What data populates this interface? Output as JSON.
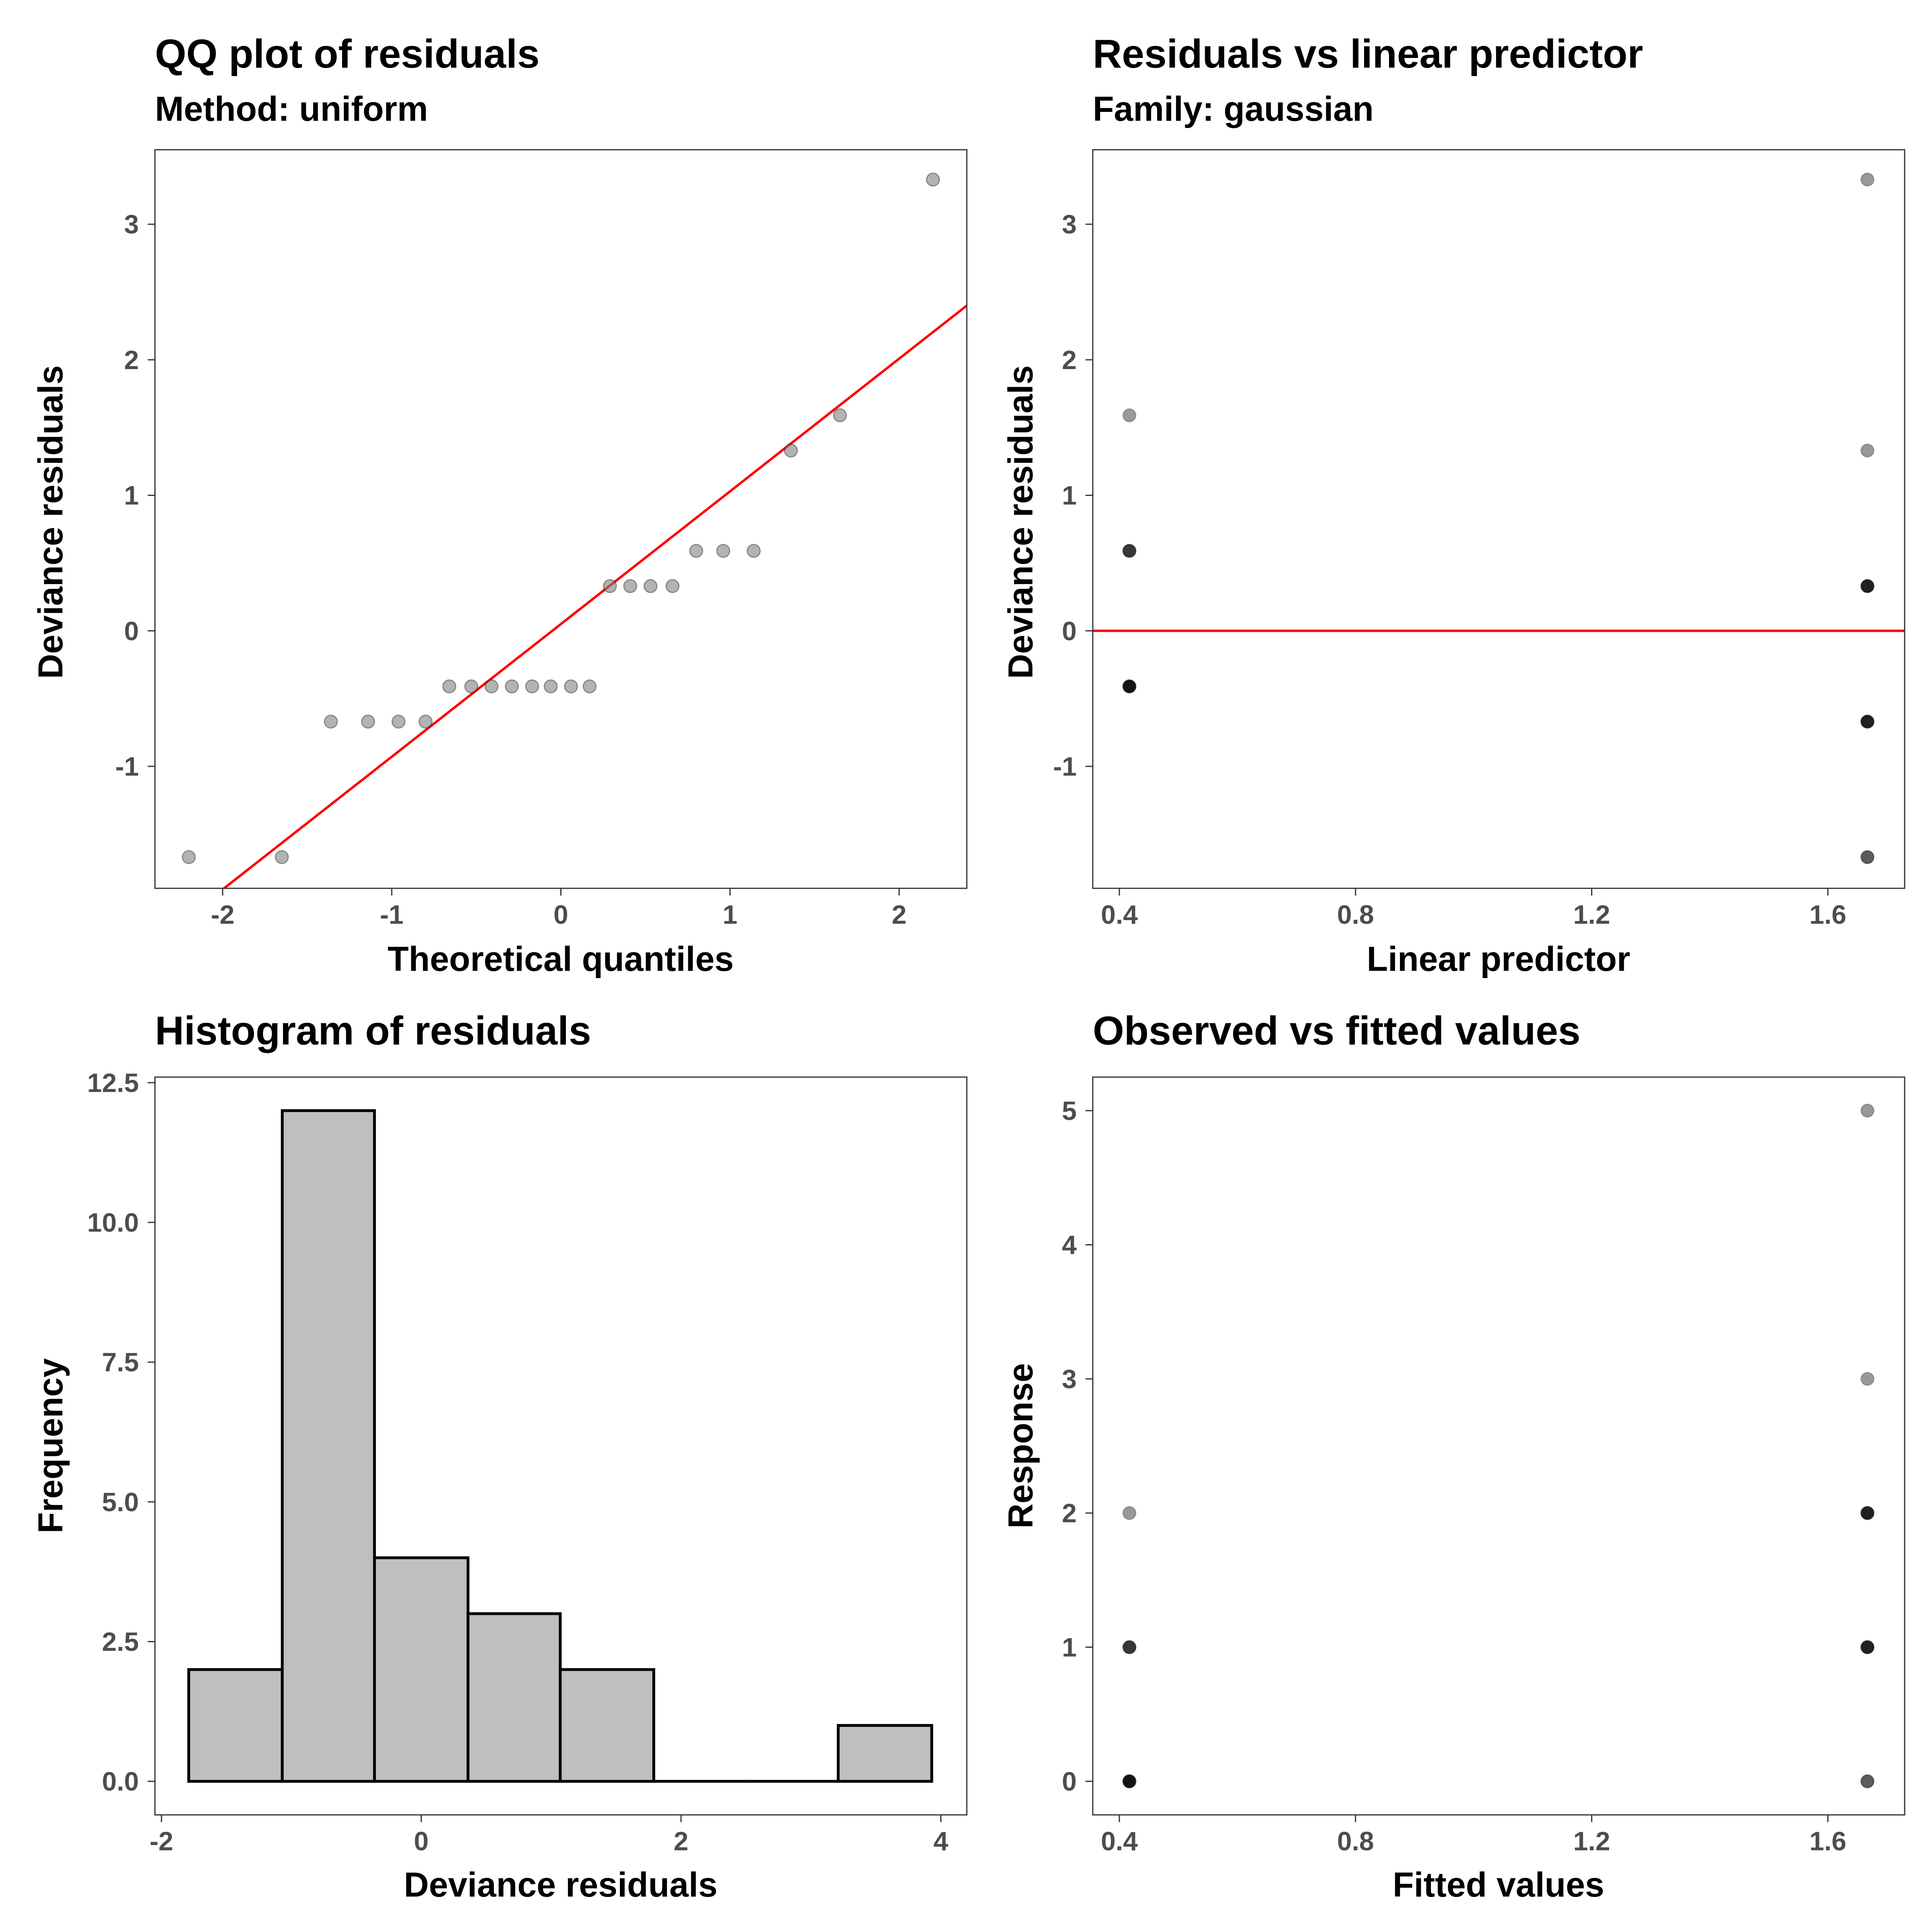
{
  "chart_data": [
    {
      "type": "scatter",
      "title": "QQ plot of residuals",
      "subtitle": "Method: uniform",
      "xlabel": "Theoretical quantiles",
      "ylabel": "Deviance residuals",
      "xlim": [
        -2.4,
        2.4
      ],
      "ylim": [
        -1.9,
        3.55
      ],
      "xticks": [
        -2,
        -1,
        0,
        1,
        2
      ],
      "yticks": [
        -1,
        0,
        1,
        2,
        3
      ],
      "xtick_labels": [
        "-2",
        "-1",
        "0",
        "1",
        "2"
      ],
      "ytick_labels": [
        "-1",
        "0",
        "1",
        "2",
        "3"
      ],
      "point_color": "#808080",
      "line_color": "#ff0000",
      "reference_line": {
        "x": [
          -2.4,
          2.4
        ],
        "y": [
          -2.3,
          2.4
        ]
      },
      "points": [
        {
          "x": -2.2,
          "y": -1.67
        },
        {
          "x": -1.65,
          "y": -1.67
        },
        {
          "x": -1.36,
          "y": -0.67
        },
        {
          "x": -1.14,
          "y": -0.67
        },
        {
          "x": -0.96,
          "y": -0.67
        },
        {
          "x": -0.8,
          "y": -0.67
        },
        {
          "x": -0.66,
          "y": -0.41
        },
        {
          "x": -0.53,
          "y": -0.41
        },
        {
          "x": -0.41,
          "y": -0.41
        },
        {
          "x": -0.29,
          "y": -0.41
        },
        {
          "x": -0.17,
          "y": -0.41
        },
        {
          "x": -0.06,
          "y": -0.41
        },
        {
          "x": 0.06,
          "y": -0.41
        },
        {
          "x": 0.17,
          "y": -0.41
        },
        {
          "x": 0.29,
          "y": 0.33
        },
        {
          "x": 0.41,
          "y": 0.33
        },
        {
          "x": 0.53,
          "y": 0.33
        },
        {
          "x": 0.66,
          "y": 0.33
        },
        {
          "x": 0.8,
          "y": 0.59
        },
        {
          "x": 0.96,
          "y": 0.59
        },
        {
          "x": 1.14,
          "y": 0.59
        },
        {
          "x": 1.36,
          "y": 1.33
        },
        {
          "x": 1.65,
          "y": 1.59
        },
        {
          "x": 2.2,
          "y": 3.33
        }
      ]
    },
    {
      "type": "scatter",
      "title": "Residuals vs linear predictor",
      "subtitle": "Family: gaussian",
      "xlabel": "Linear predictor",
      "ylabel": "Deviance residuals",
      "xlim": [
        0.355,
        1.73
      ],
      "ylim": [
        -1.9,
        3.55
      ],
      "xticks": [
        0.4,
        0.8,
        1.2,
        1.6
      ],
      "yticks": [
        -1,
        0,
        1,
        2,
        3
      ],
      "xtick_labels": [
        "0.4",
        "0.8",
        "1.2",
        "1.6"
      ],
      "ytick_labels": [
        "-1",
        "0",
        "1",
        "2",
        "3"
      ],
      "point_color": "#000000",
      "line_color": "#ff0000",
      "hline": 0,
      "points": [
        {
          "x": 0.417,
          "y": 1.59,
          "count": 1
        },
        {
          "x": 0.417,
          "y": 0.59,
          "count": 3
        },
        {
          "x": 0.417,
          "y": -0.41,
          "count": 8
        },
        {
          "x": 1.667,
          "y": 3.33,
          "count": 1
        },
        {
          "x": 1.667,
          "y": 1.33,
          "count": 1
        },
        {
          "x": 1.667,
          "y": 0.33,
          "count": 4
        },
        {
          "x": 1.667,
          "y": -0.67,
          "count": 4
        },
        {
          "x": 1.667,
          "y": -1.67,
          "count": 2
        }
      ]
    },
    {
      "type": "bar",
      "title": "Histogram of residuals",
      "xlabel": "Deviance residuals",
      "ylabel": "Frequency",
      "xlim": [
        -2.05,
        4.2
      ],
      "ylim": [
        -0.6,
        12.6
      ],
      "xticks": [
        -2,
        0,
        2,
        4
      ],
      "yticks": [
        0,
        2.5,
        5,
        7.5,
        10,
        12.5
      ],
      "xtick_labels": [
        "-2",
        "0",
        "2",
        "4"
      ],
      "ytick_labels": [
        "0.0",
        "2.5",
        "5.0",
        "7.5",
        "10.0",
        "12.5"
      ],
      "bar_fill": "#bfbfbf",
      "bar_stroke": "#000000",
      "bins": [
        {
          "x0": -1.79,
          "x1": -1.07,
          "count": 2
        },
        {
          "x0": -1.07,
          "x1": -0.36,
          "count": 12
        },
        {
          "x0": -0.36,
          "x1": 0.36,
          "count": 4
        },
        {
          "x0": 0.36,
          "x1": 1.07,
          "count": 3
        },
        {
          "x0": 1.07,
          "x1": 1.79,
          "count": 2
        },
        {
          "x0": 1.79,
          "x1": 2.5,
          "count": 0
        },
        {
          "x0": 2.5,
          "x1": 3.21,
          "count": 0
        },
        {
          "x0": 3.21,
          "x1": 3.93,
          "count": 1
        }
      ]
    },
    {
      "type": "scatter",
      "title": "Observed vs fitted values",
      "xlabel": "Fitted values",
      "ylabel": "Response",
      "xlim": [
        0.355,
        1.73
      ],
      "ylim": [
        -0.25,
        5.25
      ],
      "xticks": [
        0.4,
        0.8,
        1.2,
        1.6
      ],
      "yticks": [
        0,
        1,
        2,
        3,
        4,
        5
      ],
      "xtick_labels": [
        "0.4",
        "0.8",
        "1.2",
        "1.6"
      ],
      "ytick_labels": [
        "0",
        "1",
        "2",
        "3",
        "4",
        "5"
      ],
      "point_color": "#000000",
      "points": [
        {
          "x": 0.417,
          "y": 2,
          "count": 1
        },
        {
          "x": 0.417,
          "y": 1,
          "count": 3
        },
        {
          "x": 0.417,
          "y": 0,
          "count": 8
        },
        {
          "x": 1.667,
          "y": 5,
          "count": 1
        },
        {
          "x": 1.667,
          "y": 3,
          "count": 1
        },
        {
          "x": 1.667,
          "y": 2,
          "count": 4
        },
        {
          "x": 1.667,
          "y": 1,
          "count": 4
        },
        {
          "x": 1.667,
          "y": 0,
          "count": 2
        }
      ]
    }
  ]
}
